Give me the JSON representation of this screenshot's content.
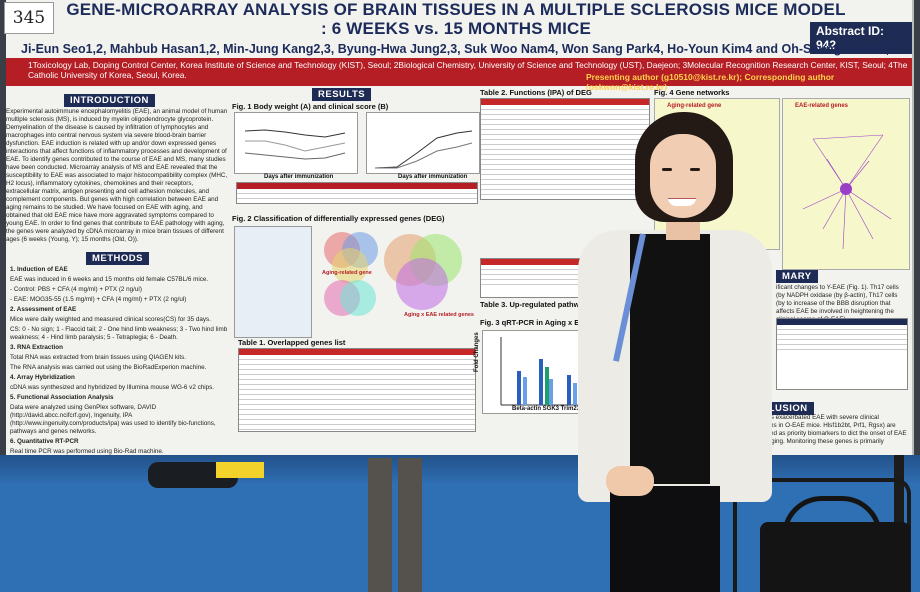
{
  "poster": {
    "number": "345",
    "title_line1": "GENE-MICROARRAY ANALYSIS OF BRAIN TISSUES IN A MULTIPLE SCLEROSIS MICE MODEL",
    "title_line2": ": 6 WEEKS vs. 15 MONTHS MICE",
    "abstract_id": "Abstract ID: 942",
    "authors": "Ji-Eun Seo1,2, Mahbub Hasan1,2, Min-Jung Kang2,3, Byung-Hwa Jung2,3, Suk Woo Nam4, Won Sang Park4, Ho-Youn Kim4 and Oh-Seung Kwon1,2*",
    "affiliations": "1Toxicology Lab, Doping Control Center, Korea Institute of Science and Technology (KIST), Seoul; 2Biological Chemistry, University of Science and Technology (UST), Daejeon; 3Molecular Recognition Research Center, KIST, Seoul; 4The Catholic University of Korea, Seoul, Korea.",
    "presenter": "Presenting author (g10510@kist.re.kr); Corresponding author (oskwon@kist.re.kr)",
    "sections": {
      "introduction": "INTRODUCTION",
      "methods": "METHODS",
      "results": "RESULTS",
      "summary": "MARY",
      "conclusion": "NCLUSION"
    },
    "intro_text": "Experimental autoimmune encephalomyelitis (EAE), an animal model of human multiple sclerosis (MS), is induced by myelin oligodendrocyte glycoprotein. Demyelination of the disease is caused by infiltration of lymphocytes and macrophages into central nervous system via severe blood-brain barrier dysfunction. EAE induction is related with up and/or down expressed genes interactions that affect functions of inflammatory processes and development of EAE. To identify genes contributed to the course of EAE and MS, many studies have been conducted. Microarray analysis of MS and EAE revealed that the susceptibility to EAE was associated to major histocompatibility complex (MHC, H2 locus), inflammatory cytokines, chemokines and their receptors, extracellular matrix, antigen presenting and cell adhesion molecules, and complement components. But genes with high correlation between EAE and aging remains to be studied. We have focused on EAE with aging, and obtained that old EAE mice have more aggravated symptoms compared to young EAE. In order to find genes that contribute to EAE pathology with aging, the genes were analyzed by cDNA microarray in mice brain tissues of different ages (6 weeks (Young, Y); 15 months (Old, O)).",
    "methods": [
      "1. Induction of EAE",
      "EAE was induced in 6 weeks and 15 months old female C57BL/6 mice.",
      "- Control: PBS + CFA (4 mg/ml) + PTX (2 ng/ul)",
      "- EAE: MOG35-55 (1.5 mg/ml) + CFA (4 mg/ml) + PTX (2 ng/ul)",
      "2. Assessment of EAE",
      "Mice were daily weighted and measured clinical scores(CS) for 35 days.",
      "CS: 0 - No sign; 1 - Flaccid tail; 2 - One hind limb weakness; 3 - Two hind limb weakness; 4 - Hind limb paralysis; 5 - Tetraplegia; 6 - Death.",
      "3. RNA Extraction",
      "Total RNA was extracted from brain tissues using QIAGEN kits.",
      "The RNA analysis was carried out using the BioRadExperion machine.",
      "4. Array Hybridization",
      "cDNA was synthesized and hybridized by Illumina mouse WG-6 v2 chips.",
      "5. Functional Association Analysis",
      "Data were analyzed using GenPlex software, DAVID (http://david.abcc.ncifcrf.gov), Ingenuity, IPA (http://www.ingenuity.com/products/ipa) was used to identify bio-functions, pathways and genes networks.",
      "6. Quantitative RT-PCR",
      "Real time PCR was performed using Bio-Rad machine."
    ],
    "figures": {
      "fig1": "Fig. 1  Body weight (A) and clinical score (B)",
      "fig2": "Fig. 2  Classification of differentially expressed genes (DEG)",
      "table1": "Table 1. Overlapped genes list",
      "table2": "Table 2. Functions (IPA) of DEG",
      "table3": "Table 3. Up-regulated pathways (DAVID) of DEG",
      "fig3": "Fig. 3  qRT-PCR in Aging x EAE related gen",
      "fig4": "Fig. 4  Gene networks",
      "net1": "Aging-related gene",
      "net2": "EAE-related genes",
      "xaxis1": "Days after immunization",
      "xaxis2": "Days after immunization",
      "venn1": "Aging-related gene",
      "venn2": "Aging x EAE related genes",
      "qpcr_x": "Beta-actin  SGK3  Trim23  Trim33",
      "qpcr_y": "Fold Changes"
    },
    "summary_text": "ificant changes to Y-EAE (Fig. 1). Th17 cells (by NADPH oxidase (by β-actin), Th17 cells (by to increase of the BBB disruption that affects EAE be involved in heightening the clinical scores of O-EAE).",
    "conclusion_text": "ed genes exacerbated EAE with severe clinical symptoms in O-EAE mice. Hlsf1b2bt, Prf1, Rgsx) are suggested as priority biomarkers to dict the onset of EAE and/or aging. Monitoring these genes is primarily",
    "colors": {
      "navy": "#1d2b55",
      "red_bar": "#b51e25",
      "floor": "#2f6fb4"
    }
  }
}
